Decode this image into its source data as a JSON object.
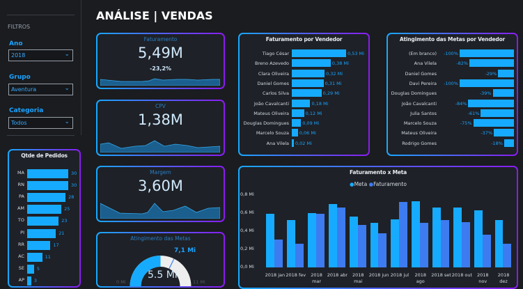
{
  "page_title": "ANÁLISE | VENDAS",
  "filters": {
    "heading": "FILTROS",
    "ano": {
      "label": "Ano",
      "value": "2018"
    },
    "grupo": {
      "label": "Grupo",
      "value": "Aventura"
    },
    "categoria": {
      "label": "Categoria",
      "value": "Todos"
    }
  },
  "colors": {
    "accent": "#16abff",
    "faturamento": "#3d7bf0",
    "border_start": "#19a8ff",
    "border_end": "#8a1cf0"
  },
  "kpis": {
    "faturamento": {
      "title": "Faturamento",
      "value": "5,49M",
      "change": "-23,2%"
    },
    "cpv": {
      "title": "CPV",
      "value": "1,38M"
    },
    "margem": {
      "title": "Margem",
      "value": "3,60M"
    }
  },
  "gauge": {
    "title": "Atingimento das Metas",
    "value": 5.5,
    "value_label": "5.5 Mi",
    "min_label": "0 Mi",
    "max": 11,
    "max_label": "11 Mi",
    "target": 7.1,
    "target_label": "7,1 Mi"
  },
  "pedidos": {
    "title": "Qtde de Pedidos",
    "items": [
      {
        "label": "MA",
        "value": 30
      },
      {
        "label": "RN",
        "value": 30
      },
      {
        "label": "PA",
        "value": 28
      },
      {
        "label": "AM",
        "value": 25
      },
      {
        "label": "TO",
        "value": 23
      },
      {
        "label": "PI",
        "value": 21
      },
      {
        "label": "RR",
        "value": 17
      },
      {
        "label": "AC",
        "value": 11
      },
      {
        "label": "SE",
        "value": 5
      },
      {
        "label": "AP",
        "value": 3
      }
    ]
  },
  "fat_vendedor": {
    "title": "Faturamento por Vendedor",
    "items": [
      {
        "label": "Tiago César",
        "value": 0.53,
        "text": "0,53 Mi"
      },
      {
        "label": "Breno Azevedo",
        "value": 0.38,
        "text": "0,38 Mi"
      },
      {
        "label": "Clara Oliveira",
        "value": 0.32,
        "text": "0,32 Mi"
      },
      {
        "label": "Daniel Gomes",
        "value": 0.31,
        "text": "0,31 Mi"
      },
      {
        "label": "Carlos Silva",
        "value": 0.29,
        "text": "0,29 Mi"
      },
      {
        "label": "João Cavalcanti",
        "value": 0.18,
        "text": "0,18 Mi"
      },
      {
        "label": "Mateus Oliveira",
        "value": 0.12,
        "text": "0,12 Mi"
      },
      {
        "label": "Douglas Domingues",
        "value": 0.09,
        "text": "0,09 Mi"
      },
      {
        "label": "Marcelo Souza",
        "value": 0.06,
        "text": "0,06 Mi"
      },
      {
        "label": "Ana Vilela",
        "value": 0.02,
        "text": "0,02 Mi"
      }
    ]
  },
  "ating_vendedor": {
    "title": "Atingimento das Metas por Vendedor",
    "items": [
      {
        "label": "(Em branco)",
        "value": -100,
        "text": "-100%"
      },
      {
        "label": "Ana Vilela",
        "value": -82,
        "text": "-82%"
      },
      {
        "label": "Daniel Gomes",
        "value": -29,
        "text": "-29%"
      },
      {
        "label": "Davi Pereira",
        "value": -100,
        "text": "-100%"
      },
      {
        "label": "Douglas Domingues",
        "value": -39,
        "text": "-39%"
      },
      {
        "label": "João Cavalcanti",
        "value": -84,
        "text": "-84%"
      },
      {
        "label": "Julia Santos",
        "value": -61,
        "text": "-61%"
      },
      {
        "label": "Marcelo Souza",
        "value": -75,
        "text": "-75%"
      },
      {
        "label": "Mateus Oliveira",
        "value": -37,
        "text": "-37%"
      },
      {
        "label": "Rodrigo Gomes",
        "value": -18,
        "text": "-18%"
      }
    ]
  },
  "chart_data": {
    "type": "bar",
    "title": "Faturamento x Meta",
    "categories": [
      "2018 jan",
      "2018 fev",
      "2018 mar",
      "2018 abr",
      "2018 mai",
      "2018 jun",
      "2018 jul",
      "2018 ago",
      "2018 set",
      "2018 out",
      "2018 nov",
      "2018 dez"
    ],
    "series": [
      {
        "name": "Meta",
        "color": "#16abff",
        "values": [
          0.59,
          0.52,
          0.6,
          0.7,
          0.56,
          0.49,
          0.53,
          0.73,
          0.66,
          0.66,
          0.63,
          0.52
        ]
      },
      {
        "name": "Faturamento",
        "color": "#3d7bf0",
        "values": [
          0.31,
          0.26,
          0.59,
          0.66,
          0.47,
          0.38,
          0.72,
          0.49,
          0.52,
          0.5,
          0.36,
          0.26
        ]
      }
    ],
    "yticks": [
      "0,0 Mi",
      "0,2 Mi",
      "0,4 Mi",
      "0,6 Mi",
      "0,8 Mi"
    ],
    "ylim": [
      0,
      0.8
    ],
    "legend": "top-center",
    "grid": false
  }
}
